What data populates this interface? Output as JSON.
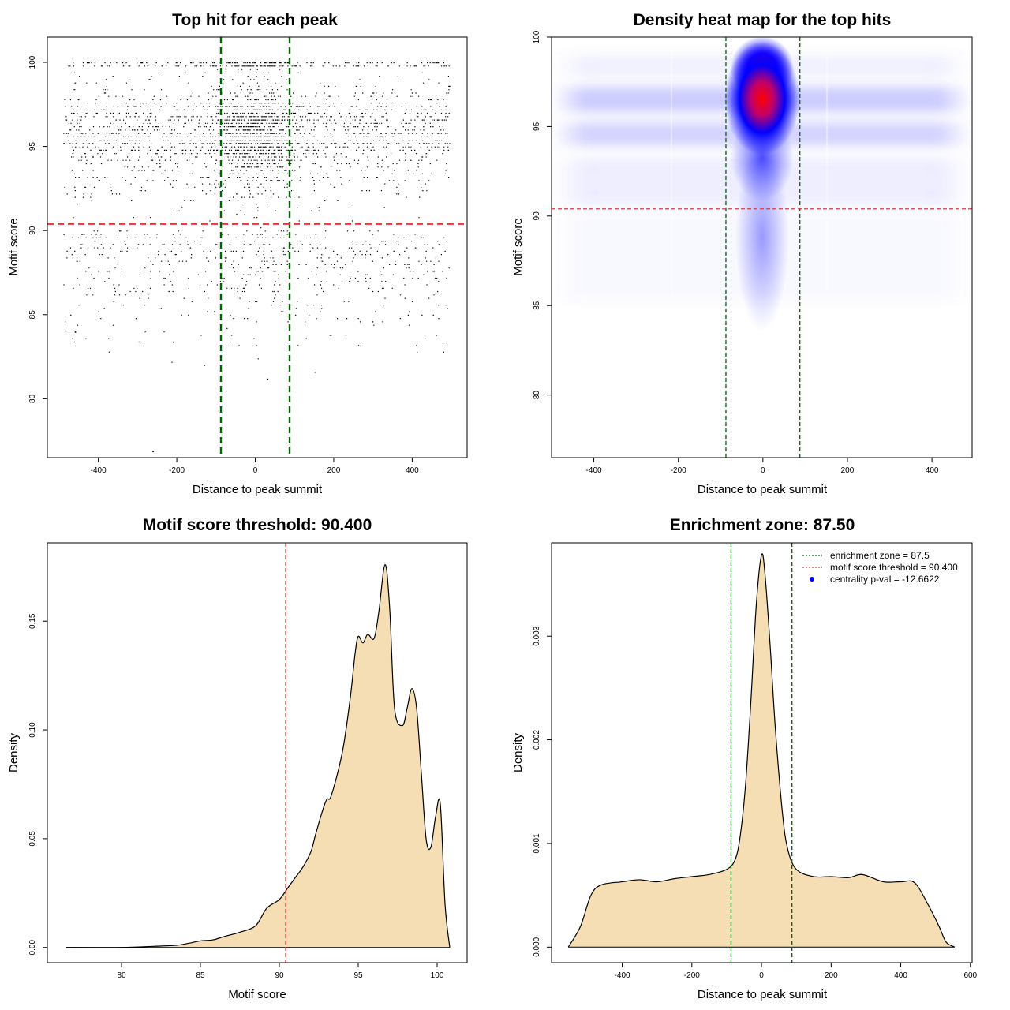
{
  "chart_data": [
    {
      "type": "scatter",
      "title": "Top hit for each peak",
      "xlabel": "Distance to peak summit",
      "ylabel": "Motif score",
      "xlim": [
        -530,
        540
      ],
      "ylim": [
        76.5,
        101.5
      ],
      "xticks": [
        -400,
        -200,
        0,
        200,
        400
      ],
      "yticks": [
        80,
        85,
        90,
        95,
        100
      ],
      "point_count_approx": 9000,
      "points_sample": [
        {
          "x": -262,
          "y": 76.9
        },
        {
          "x": 30,
          "y": 81.2
        },
        {
          "x": -210,
          "y": 83.4
        },
        {
          "x": 410,
          "y": 83.2
        },
        {
          "x": -460,
          "y": 84.0
        }
      ],
      "vlines": [
        {
          "x": -87.5,
          "color": "#006400",
          "style": "dashed"
        },
        {
          "x": 87.5,
          "color": "#006400",
          "style": "dashed"
        }
      ],
      "hlines": [
        {
          "y": 90.4,
          "color": "#e8343b",
          "style": "dashed"
        }
      ]
    },
    {
      "type": "heatmap",
      "title": "Density heat map for the top hits",
      "xlabel": "Distance to peak summit",
      "ylabel": "Motif score",
      "xlim": [
        -500,
        495
      ],
      "ylim": [
        76.5,
        100
      ],
      "xticks": [
        -400,
        -200,
        0,
        200,
        400
      ],
      "yticks": [
        80,
        85,
        90,
        95,
        100
      ],
      "color_scale": [
        "#ffffff",
        "#0000ff",
        "#ff0000"
      ],
      "peak": {
        "x": 0,
        "y": 96.7
      },
      "vlines": [
        {
          "x": -87.5,
          "color": "#006400",
          "style": "dashed"
        },
        {
          "x": 87.5,
          "color": "#006400",
          "style": "dashed"
        }
      ],
      "hlines": [
        {
          "y": 90.4,
          "color": "#e8343b",
          "style": "dashed"
        }
      ]
    },
    {
      "type": "area",
      "title": "Motif score threshold: 90.400",
      "xlabel": "Motif score",
      "ylabel": "Density",
      "xlim": [
        75.3,
        101.9
      ],
      "ylim": [
        -0.007,
        0.186
      ],
      "xticks": [
        80,
        85,
        90,
        95,
        100
      ],
      "yticks": [
        0.0,
        0.05,
        0.1,
        0.15
      ],
      "ytick_labels": [
        "0.00",
        "0.05",
        "0.10",
        "0.15"
      ],
      "fill": "#f5deb3",
      "x": [
        76.5,
        80,
        82,
        83.5,
        84.3,
        85,
        85.8,
        86.5,
        87.5,
        88.5,
        89.2,
        90,
        90.5,
        91,
        91.5,
        92,
        92.3,
        92.7,
        93,
        93.3,
        94,
        94.5,
        94.8,
        95.0,
        95.3,
        95.6,
        96.0,
        96.3,
        96.7,
        97.0,
        97.3,
        97.8,
        98.1,
        98.4,
        98.7,
        99.0,
        99.3,
        99.6,
        99.9,
        100.2,
        100.5,
        100.8
      ],
      "y": [
        0.0,
        0.0,
        0.0005,
        0.001,
        0.002,
        0.003,
        0.0035,
        0.005,
        0.007,
        0.01,
        0.018,
        0.022,
        0.027,
        0.032,
        0.037,
        0.044,
        0.052,
        0.062,
        0.068,
        0.07,
        0.09,
        0.115,
        0.135,
        0.143,
        0.14,
        0.144,
        0.142,
        0.154,
        0.176,
        0.155,
        0.11,
        0.102,
        0.11,
        0.119,
        0.11,
        0.08,
        0.05,
        0.046,
        0.06,
        0.066,
        0.02,
        0.0
      ],
      "vlines": [
        {
          "x": 90.4,
          "color": "#e8343b",
          "style": "dashed"
        }
      ]
    },
    {
      "type": "area",
      "title": "Enrichment zone: 87.50",
      "xlabel": "Distance to peak summit",
      "ylabel": "Density",
      "xlim": [
        -603,
        605
      ],
      "ylim": [
        -0.00015,
        0.0039
      ],
      "xticks": [
        -400,
        -200,
        0,
        200,
        400,
        600
      ],
      "yticks": [
        0.0,
        0.001,
        0.002,
        0.003
      ],
      "ytick_labels": [
        "0.000",
        "0.001",
        "0.002",
        "0.003"
      ],
      "fill": "#f5deb3",
      "x": [
        -555,
        -520,
        -490,
        -460,
        -400,
        -350,
        -300,
        -250,
        -200,
        -150,
        -100,
        -75,
        -60,
        -45,
        -30,
        -15,
        0,
        10,
        25,
        40,
        60,
        75,
        100,
        150,
        200,
        250,
        290,
        350,
        400,
        440,
        480,
        510,
        530,
        555
      ],
      "y": [
        0.0,
        0.0002,
        0.0005,
        0.0006,
        0.00063,
        0.00065,
        0.00063,
        0.00066,
        0.00068,
        0.0007,
        0.00075,
        0.00085,
        0.0011,
        0.0016,
        0.0024,
        0.0033,
        0.00378,
        0.0036,
        0.0029,
        0.0021,
        0.0013,
        0.00095,
        0.00075,
        0.00068,
        0.00068,
        0.00067,
        0.0007,
        0.00063,
        0.00063,
        0.00062,
        0.0004,
        0.0002,
        5e-05,
        0.0
      ],
      "vlines": [
        {
          "x": -87.5,
          "color": "#006400",
          "style": "dashed"
        },
        {
          "x": 87.5,
          "color": "#006400",
          "style": "dashed"
        }
      ],
      "legend": {
        "position": "top-right",
        "entries": [
          {
            "label": "enrichment zone = 87.5",
            "color": "#006400",
            "kind": "dotted-line"
          },
          {
            "label": "motif score threshold = 90.400",
            "color": "#e8343b",
            "kind": "dotted-line"
          },
          {
            "label": "centrality p-val = -12.6622",
            "color": "#0000ff",
            "kind": "dot"
          }
        ]
      }
    }
  ]
}
